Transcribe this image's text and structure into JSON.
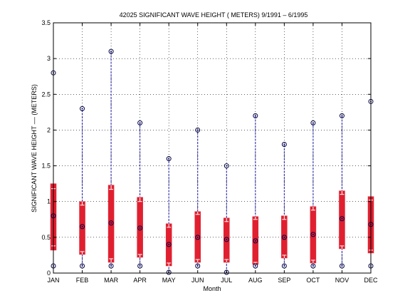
{
  "chart_data": {
    "type": "box",
    "title": "42025  SIGNIFICANT WAVE HEIGHT ( METERS) 9/1991 – 6/1995",
    "xlabel": "Month",
    "ylabel": "SIGNIFICANT WAVE HEIGHT –– (METERS)",
    "ylim": [
      0,
      3.5
    ],
    "yticks": [
      "0",
      "0.5",
      "1",
      "1.5",
      "2",
      "2.5",
      "3",
      "3.5"
    ],
    "grid": true,
    "categories": [
      "JAN",
      "FEB",
      "MAR",
      "APR",
      "MAY",
      "JUN",
      "JUL",
      "AUG",
      "SEP",
      "OCT",
      "NOV",
      "DEC"
    ],
    "series": [
      {
        "min": 0.1,
        "box_low": 0.32,
        "inner_low": 0.38,
        "median": 0.8,
        "inner_high": 1.18,
        "box_high": 1.25,
        "max": 2.8
      },
      {
        "min": 0.1,
        "box_low": 0.26,
        "inner_low": 0.3,
        "median": 0.65,
        "inner_high": 0.95,
        "box_high": 1.0,
        "max": 2.3
      },
      {
        "min": 0.1,
        "box_low": 0.15,
        "inner_low": 0.2,
        "median": 0.7,
        "inner_high": 1.17,
        "box_high": 1.23,
        "max": 3.1
      },
      {
        "min": 0.1,
        "box_low": 0.22,
        "inner_low": 0.26,
        "median": 0.63,
        "inner_high": 1.0,
        "box_high": 1.06,
        "max": 2.1
      },
      {
        "min": 0.01,
        "box_low": 0.1,
        "inner_low": 0.14,
        "median": 0.4,
        "inner_high": 0.64,
        "box_high": 0.69,
        "max": 1.6
      },
      {
        "min": 0.1,
        "box_low": 0.15,
        "inner_low": 0.19,
        "median": 0.5,
        "inner_high": 0.82,
        "box_high": 0.86,
        "max": 2.0
      },
      {
        "min": 0.01,
        "box_low": 0.15,
        "inner_low": 0.19,
        "median": 0.47,
        "inner_high": 0.72,
        "box_high": 0.77,
        "max": 1.5
      },
      {
        "min": 0.1,
        "box_low": 0.12,
        "inner_low": 0.15,
        "median": 0.45,
        "inner_high": 0.75,
        "box_high": 0.79,
        "max": 2.2
      },
      {
        "min": 0.1,
        "box_low": 0.21,
        "inner_low": 0.25,
        "median": 0.5,
        "inner_high": 0.75,
        "box_high": 0.8,
        "max": 1.8
      },
      {
        "min": 0.1,
        "box_low": 0.14,
        "inner_low": 0.18,
        "median": 0.54,
        "inner_high": 0.88,
        "box_high": 0.93,
        "max": 2.1
      },
      {
        "min": 0.1,
        "box_low": 0.34,
        "inner_low": 0.38,
        "median": 0.76,
        "inner_high": 1.1,
        "box_high": 1.15,
        "max": 2.2
      },
      {
        "min": 0.1,
        "box_low": 0.28,
        "inner_low": 0.32,
        "median": 0.68,
        "inner_high": 1.02,
        "box_high": 1.07,
        "max": 2.4
      }
    ],
    "colors": {
      "box": "#e02030",
      "whisker": "#1a1aa0",
      "marker": "#000044",
      "inner": "#ffffff"
    }
  }
}
